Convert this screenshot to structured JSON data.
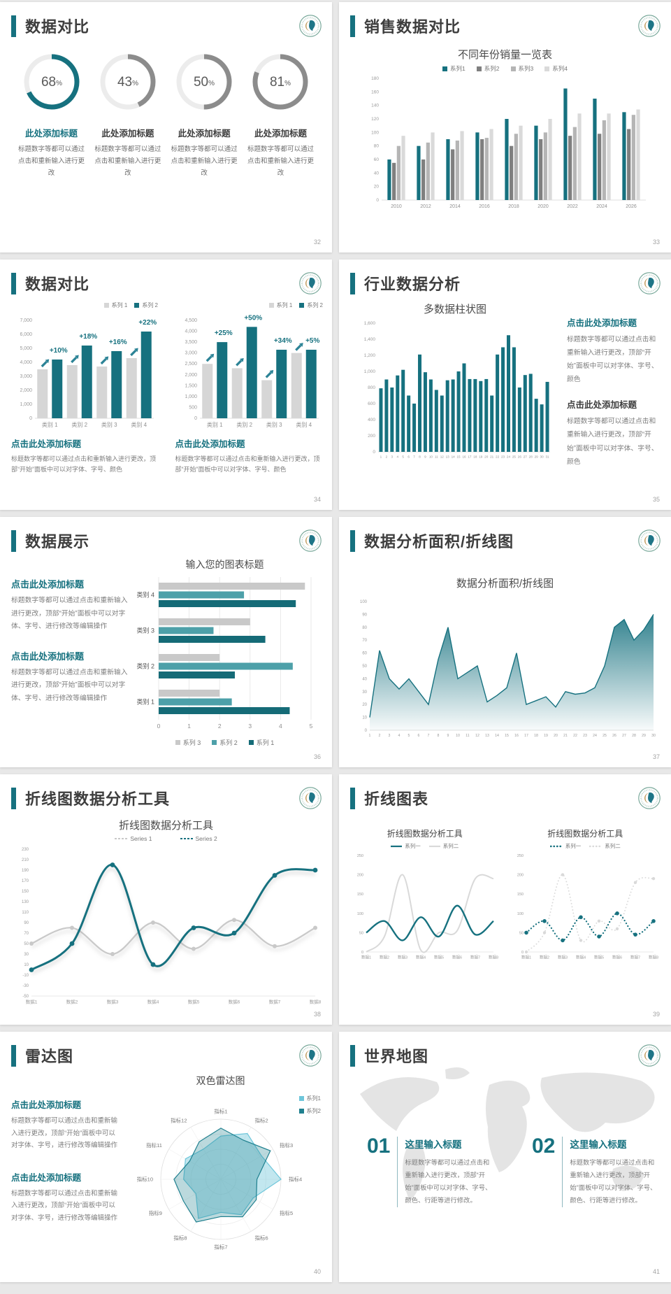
{
  "colors": {
    "accent": "#16717f",
    "teal_dark": "#156b77",
    "teal_mid": "#4da0a9",
    "cyan_light": "#6ec6da",
    "gray_dark": "#7f7f7f",
    "gray_mid": "#b5b5b5",
    "gray_light": "#d9d9d9",
    "page_bg": "#e8e8e8"
  },
  "slides": {
    "s32": {
      "title": "数据对比",
      "page": "32",
      "donuts": [
        {
          "pct": 68,
          "value": "68",
          "unit": "%",
          "color": "#16717f",
          "title": "此处添加标题",
          "title_color": "#16717f",
          "body": "标题数字等都可以通过点击和重新输入进行更改"
        },
        {
          "pct": 43,
          "value": "43",
          "unit": "%",
          "color": "#8c8c8c",
          "title": "此处添加标题",
          "title_color": "#3d3d3d",
          "body": "标题数字等都可以通过点击和重新输入进行更改"
        },
        {
          "pct": 50,
          "value": "50",
          "unit": "%",
          "color": "#8c8c8c",
          "title": "此处添加标题",
          "title_color": "#3d3d3d",
          "body": "标题数字等都可以通过点击和重新输入进行更改"
        },
        {
          "pct": 81,
          "value": "81",
          "unit": "%",
          "color": "#8c8c8c",
          "title": "此处添加标题",
          "title_color": "#3d3d3d",
          "body": "标题数字等都可以通过点击和重新输入进行更改"
        }
      ]
    },
    "s33": {
      "title": "销售数据对比",
      "page": "33",
      "chart_data": {
        "type": "bar",
        "title": "不同年份销量一览表",
        "categories": [
          "2010",
          "2012",
          "2014",
          "2016",
          "2018",
          "2020",
          "2022",
          "2024",
          "2026"
        ],
        "ylim": [
          0,
          180
        ],
        "ystep": 20,
        "series": [
          {
            "name": "系列1",
            "color": "#16717f",
            "values": [
              60,
              80,
              90,
              100,
              120,
              110,
              165,
              150,
              130
            ]
          },
          {
            "name": "系列2",
            "color": "#7f7f7f",
            "values": [
              55,
              60,
              75,
              90,
              80,
              90,
              95,
              98,
              105
            ]
          },
          {
            "name": "系列3",
            "color": "#b5b5b5",
            "values": [
              80,
              85,
              88,
              92,
              98,
              100,
              108,
              118,
              126
            ]
          },
          {
            "name": "系列4",
            "color": "#dadada",
            "values": [
              95,
              100,
              102,
              105,
              110,
              120,
              128,
              128,
              134
            ]
          }
        ]
      }
    },
    "s34": {
      "title": "数据对比",
      "page": "34",
      "charts": [
        {
          "type": "bar",
          "categories": [
            "类别 1",
            "类别 2",
            "类别 3",
            "类别 4"
          ],
          "ylim": [
            0,
            7000
          ],
          "ystep": 1000,
          "labels": [
            "+10%",
            "+18%",
            "+16%",
            "+22%"
          ],
          "series": [
            {
              "name": "系列 1",
              "color": "#d6d6d6",
              "values": [
                3500,
                3800,
                3700,
                4300
              ]
            },
            {
              "name": "系列 2",
              "color": "#16717f",
              "values": [
                4200,
                5200,
                4800,
                6200
              ]
            }
          ]
        },
        {
          "type": "bar",
          "categories": [
            "类别 1",
            "类别 2",
            "类别 3",
            "类别 4"
          ],
          "ylim": [
            0,
            4500
          ],
          "ystep": 500,
          "labels": [
            "+25%",
            "+50%",
            "+34%",
            "+5%"
          ],
          "series": [
            {
              "name": "系列 1",
              "color": "#d6d6d6",
              "values": [
                2500,
                2300,
                1750,
                3000
              ]
            },
            {
              "name": "系列 2",
              "color": "#16717f",
              "values": [
                3500,
                4200,
                3150,
                3150
              ]
            }
          ]
        }
      ],
      "blocks": [
        {
          "heading": "点击此处添加标题",
          "body": "标题数字等都可以通过点击和重新输入进行更改，顶部“开始”面板中可以对字体、字号、颜色"
        },
        {
          "heading": "点击此处添加标题",
          "body": "标题数字等都可以通过点击和重新输入进行更改，顶部“开始”面板中可以对字体、字号、颜色"
        }
      ]
    },
    "s35": {
      "title": "行业数据分析",
      "page": "35",
      "chart_data": {
        "type": "bar",
        "title": "多数据柱状图",
        "categories": [
          "1",
          "2",
          "3",
          "4",
          "5",
          "6",
          "7",
          "8",
          "9",
          "10",
          "11",
          "12",
          "13",
          "14",
          "15",
          "16",
          "17",
          "18",
          "19",
          "20",
          "21",
          "22",
          "23",
          "24",
          "25",
          "26",
          "27",
          "28",
          "29",
          "30",
          "31"
        ],
        "ylim": [
          0,
          1600
        ],
        "ystep": 200,
        "series": [
          {
            "name": "数据",
            "color": "#16717f",
            "values": [
              790,
              900,
              800,
              950,
              1020,
              700,
              600,
              1210,
              990,
              900,
              770,
              700,
              890,
              900,
              1000,
              1100,
              905,
              905,
              880,
              905,
              700,
              1210,
              1300,
              1450,
              1300,
              800,
              955,
              970,
              660,
              590,
              870
            ]
          }
        ]
      },
      "blocks": [
        {
          "heading": "点击此处添加标题",
          "body": "标题数字等都可以通过点击和重新输入进行更改，顶部“开始”面板中可以对字体、字号、颜色"
        },
        {
          "heading": "点击此处添加标题",
          "body": "标题数字等都可以通过点击和重新输入进行更改，顶部“开始”面板中可以对字体、字号、颜色"
        }
      ]
    },
    "s36": {
      "title": "数据展示",
      "page": "36",
      "chart_data": {
        "type": "hbar",
        "title": "输入您的图表标题",
        "categories": [
          "类别 4",
          "类别 3",
          "类别 2",
          "类别 1"
        ],
        "xlim": [
          0,
          5
        ],
        "xstep": 1,
        "series": [
          {
            "name": "系列 3",
            "color": "#c9c9c9",
            "values": [
              4.8,
              3,
              2,
              2
            ]
          },
          {
            "name": "系列 2",
            "color": "#4da0a9",
            "values": [
              2.8,
              1.8,
              4.4,
              2.4
            ]
          },
          {
            "name": "系列 1",
            "color": "#156b77",
            "values": [
              4.5,
              3.5,
              2.5,
              4.3
            ]
          }
        ]
      },
      "blocks": [
        {
          "heading": "点击此处添加标题",
          "body": "标题数字等都可以通过点击和重新输入进行更改，顶部“开始”面板中可以对字体、字号、进行修改等编辑操作"
        },
        {
          "heading": "点击此处添加标题",
          "body": "标题数字等都可以通过点击和重新输入进行更改，顶部“开始”面板中可以对字体、字号、进行修改等编辑操作"
        }
      ]
    },
    "s37": {
      "title": "数据分析面积/折线图",
      "page": "37",
      "chart_data": {
        "type": "area",
        "title": "数据分析面积/折线图",
        "color": "#16717f",
        "ylim": [
          0,
          100
        ],
        "ystep": 10,
        "x": [
          "1",
          "2",
          "3",
          "4",
          "5",
          "6",
          "7",
          "8",
          "9",
          "10",
          "11",
          "12",
          "13",
          "14",
          "15",
          "16",
          "17",
          "18",
          "19",
          "20",
          "21",
          "22",
          "23",
          "24",
          "25",
          "26",
          "27",
          "28",
          "29",
          "30"
        ],
        "values": [
          10,
          62,
          40,
          32,
          40,
          30,
          20,
          55,
          80,
          40,
          45,
          50,
          22,
          27,
          33,
          60,
          20,
          23,
          26,
          18,
          30,
          28,
          29,
          33,
          50,
          80,
          86,
          70,
          78,
          90
        ]
      }
    },
    "s38": {
      "title": "折线图数据分析工具",
      "page": "38",
      "chart_data": {
        "type": "line",
        "title": "折线图数据分析工具",
        "categories": [
          "数据1",
          "数据2",
          "数据3",
          "数据4",
          "数据5",
          "数据6",
          "数据7",
          "数据8"
        ],
        "ylim": [
          -50,
          230
        ],
        "ystep": 20,
        "series": [
          {
            "name": "Series 1",
            "color": "#c9c9c9",
            "values": [
              50,
              80,
              30,
              90,
              40,
              95,
              45,
              80
            ]
          },
          {
            "name": "Series 2",
            "color": "#16717f",
            "values": [
              0,
              50,
              200,
              10,
              80,
              70,
              180,
              190
            ]
          }
        ]
      }
    },
    "s39": {
      "title": "折线图表",
      "page": "39",
      "charts": [
        {
          "type": "line",
          "title": "折线图数据分析工具",
          "style": "solid",
          "categories": [
            "数据1",
            "数据2",
            "数据3",
            "数据4",
            "数据5",
            "数据6",
            "数据7",
            "数据8"
          ],
          "ylim": [
            0,
            250
          ],
          "ystep": 50,
          "series": [
            {
              "name": "系列二",
              "color": "#d9d9d9",
              "values": [
                0,
                40,
                200,
                5,
                50,
                55,
                190,
                190
              ]
            },
            {
              "name": "系列一",
              "color": "#16717f",
              "values": [
                50,
                80,
                30,
                90,
                40,
                120,
                45,
                80
              ]
            }
          ],
          "legend": [
            {
              "name": "系列一",
              "color": "#16717f"
            },
            {
              "name": "系列二",
              "color": "#d9d9d9"
            }
          ]
        },
        {
          "type": "line",
          "title": "折线图数据分析工具",
          "style": "dotted",
          "categories": [
            "数据1",
            "数据2",
            "数据3",
            "数据4",
            "数据5",
            "数据6",
            "数据7",
            "数据8"
          ],
          "ylim": [
            0,
            250
          ],
          "ystep": 50,
          "series": [
            {
              "name": "系列二",
              "color": "#d9d9d9",
              "values": [
                0,
                50,
                200,
                30,
                80,
                60,
                180,
                190
              ]
            },
            {
              "name": "系列一",
              "color": "#16717f",
              "values": [
                50,
                80,
                30,
                90,
                40,
                100,
                45,
                80
              ]
            }
          ],
          "legend": [
            {
              "name": "系列一",
              "color": "#16717f"
            },
            {
              "name": "系列二",
              "color": "#d9d9d9"
            }
          ]
        }
      ]
    },
    "s40": {
      "title": "雷达图",
      "page": "40",
      "chart_data": {
        "type": "radar",
        "title": "双色雷达图",
        "max": 100,
        "axes": [
          "指标1",
          "指标2",
          "指标3",
          "指标4",
          "指标5",
          "指标6",
          "指标7",
          "指标8",
          "指标9",
          "指标10",
          "指标11",
          "指标12"
        ],
        "series": [
          {
            "name": "系列1",
            "color": "#6ec6da",
            "values": [
              72,
              88,
              78,
              100,
              62,
              68,
              55,
              75,
              48,
              62,
              68,
              58
            ]
          },
          {
            "name": "系列2",
            "color": "#1f808f",
            "values": [
              85,
              75,
              95,
              60,
              68,
              72,
              62,
              82,
              72,
              78,
              60,
              72
            ]
          }
        ]
      },
      "blocks": [
        {
          "heading": "点击此处添加标题",
          "body": "标题数字等都可以通过点击和重新输入进行更改，顶部“开始”面板中可以对字体、字号，进行修改等编辑操作"
        },
        {
          "heading": "点击此处添加标题",
          "body": "标题数字等都可以通过点击和重新输入进行更改，顶部“开始”面板中可以对字体、字号，进行修改等编辑操作"
        }
      ]
    },
    "s41": {
      "title": "世界地图",
      "page": "41",
      "items": [
        {
          "num": "01",
          "heading": "这里输入标题",
          "body": "标题数字等都可以通过点击和重新输入进行更改，顶部“开始”面板中可以对字体、字号、颜色、行距等进行修改。"
        },
        {
          "num": "02",
          "heading": "这里输入标题",
          "body": "标题数字等都可以通过点击和重新输入进行更改，顶部“开始”面板中可以对字体、字号、颜色、行距等进行修改。"
        }
      ]
    }
  }
}
